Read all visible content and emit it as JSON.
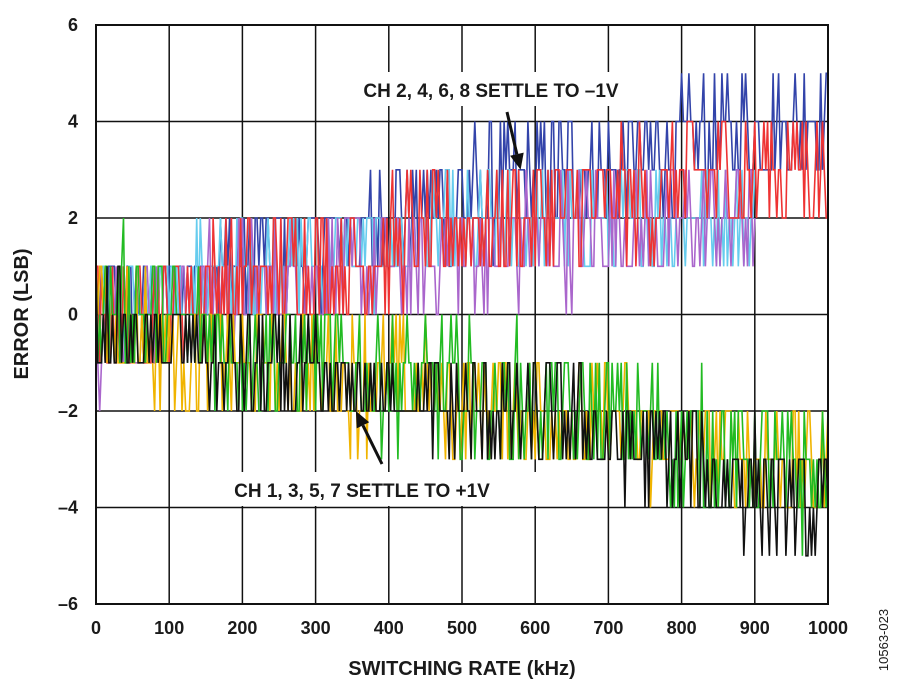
{
  "chart_data": {
    "type": "line",
    "xlabel": "SWITCHING RATE (kHz)",
    "ylabel": "ERROR (LSB)",
    "xlim": [
      0,
      1000
    ],
    "ylim": [
      -6,
      6
    ],
    "xticks": [
      0,
      100,
      200,
      300,
      400,
      500,
      600,
      700,
      800,
      900,
      1000
    ],
    "yticks": [
      6,
      4,
      2,
      0,
      -2,
      -4,
      -6
    ],
    "ytick_labels": [
      "6",
      "4",
      "2",
      "0",
      "–2",
      "–4",
      "–6"
    ],
    "grid": true,
    "figure_id": "10563-023",
    "annotations": [
      {
        "text": "CH 2, 4, 6, 8 SETTLE TO –1V",
        "arrow_to": [
          580,
          3
        ]
      },
      {
        "text": "CH 1, 3, 5, 7 SETTLE TO +1V",
        "arrow_to": [
          355,
          -2
        ]
      }
    ],
    "series": [
      {
        "color": "#3344aa",
        "group": "settle_to_minus_1V",
        "points": [
          [
            0,
            0
          ],
          [
            150,
            1
          ],
          [
            300,
            1.5
          ],
          [
            450,
            2.2
          ],
          [
            600,
            2.8
          ],
          [
            750,
            3.3
          ],
          [
            900,
            3.8
          ],
          [
            1000,
            4.2
          ]
        ],
        "spread": 1.2,
        "max_env": [
          [
            0,
            1
          ],
          [
            300,
            2
          ],
          [
            450,
            3
          ],
          [
            500,
            4
          ],
          [
            700,
            4
          ],
          [
            800,
            4.5
          ],
          [
            900,
            5
          ],
          [
            950,
            6
          ],
          [
            1000,
            5
          ]
        ]
      },
      {
        "color": "#66ccee",
        "group": "settle_to_minus_1V",
        "points": [
          [
            0,
            0
          ],
          [
            150,
            0.8
          ],
          [
            300,
            1.2
          ],
          [
            450,
            1.6
          ],
          [
            600,
            1.9
          ],
          [
            750,
            2.0
          ],
          [
            900,
            2.0
          ]
        ],
        "spread": 1.0
      },
      {
        "color": "#aa66cc",
        "group": "settle_to_minus_1V",
        "points": [
          [
            0,
            -0.5
          ],
          [
            150,
            0.5
          ],
          [
            300,
            0.8
          ],
          [
            450,
            1.2
          ],
          [
            600,
            1.5
          ],
          [
            750,
            1.8
          ],
          [
            900,
            2.0
          ]
        ],
        "spread": 1.2
      },
      {
        "color": "#ee3333",
        "group": "settle_to_minus_1V",
        "points": [
          [
            0,
            -0.5
          ],
          [
            150,
            0.5
          ],
          [
            300,
            1.0
          ],
          [
            450,
            1.6
          ],
          [
            600,
            2.0
          ],
          [
            750,
            2.5
          ],
          [
            900,
            3.0
          ],
          [
            1000,
            3.2
          ]
        ],
        "spread": 1.3,
        "min_env": [
          [
            0,
            -2
          ],
          [
            30,
            -3
          ],
          [
            150,
            -2
          ],
          [
            300,
            -1
          ],
          [
            400,
            0
          ],
          [
            700,
            1
          ],
          [
            1000,
            2
          ]
        ]
      },
      {
        "color": "#f0b400",
        "group": "settle_to_plus_1V",
        "points": [
          [
            0,
            0
          ],
          [
            150,
            -0.8
          ],
          [
            300,
            -1.2
          ],
          [
            450,
            -1.6
          ],
          [
            600,
            -2.0
          ],
          [
            750,
            -2.5
          ],
          [
            900,
            -3.0
          ],
          [
            1000,
            -3.3
          ]
        ],
        "spread": 1.2
      },
      {
        "color": "#22bb22",
        "group": "settle_to_plus_1V",
        "points": [
          [
            0,
            0.5
          ],
          [
            150,
            -0.5
          ],
          [
            300,
            -1.0
          ],
          [
            450,
            -1.5
          ],
          [
            600,
            -1.8
          ],
          [
            750,
            -2.4
          ],
          [
            900,
            -3.0
          ],
          [
            1000,
            -3.5
          ]
        ],
        "spread": 1.3
      },
      {
        "color": "#111111",
        "group": "settle_to_plus_1V",
        "points": [
          [
            0,
            -0.5
          ],
          [
            150,
            -1.0
          ],
          [
            300,
            -1.5
          ],
          [
            450,
            -2.0
          ],
          [
            600,
            -2.2
          ],
          [
            750,
            -2.8
          ],
          [
            900,
            -3.5
          ],
          [
            1000,
            -4.2
          ]
        ],
        "spread": 1.2,
        "min_env": [
          [
            0,
            -1
          ],
          [
            300,
            -2
          ],
          [
            450,
            -2.5
          ],
          [
            600,
            -3
          ],
          [
            700,
            -3.5
          ],
          [
            800,
            -4.5
          ],
          [
            900,
            -5
          ],
          [
            960,
            -6
          ],
          [
            1000,
            -6
          ]
        ]
      }
    ]
  }
}
